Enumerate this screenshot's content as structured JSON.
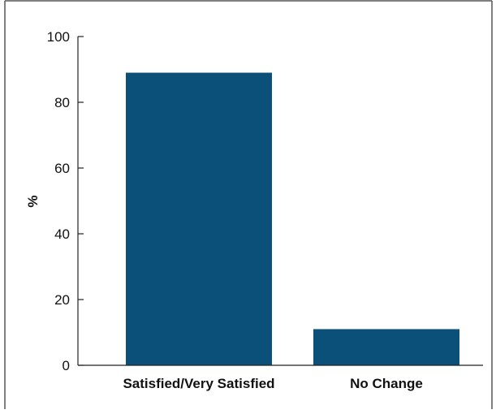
{
  "chart_data": {
    "type": "bar",
    "categories": [
      "Satisfied/Very Satisfied",
      "No Change"
    ],
    "values": [
      89,
      11
    ],
    "ylabel": "%",
    "xlabel": "",
    "ylim": [
      0,
      100
    ],
    "yticks": [
      0,
      20,
      40,
      60,
      80,
      100
    ],
    "grid": false,
    "colors": {
      "bar": "#0a5079",
      "axis": "#222222",
      "frame": "#555555"
    }
  }
}
